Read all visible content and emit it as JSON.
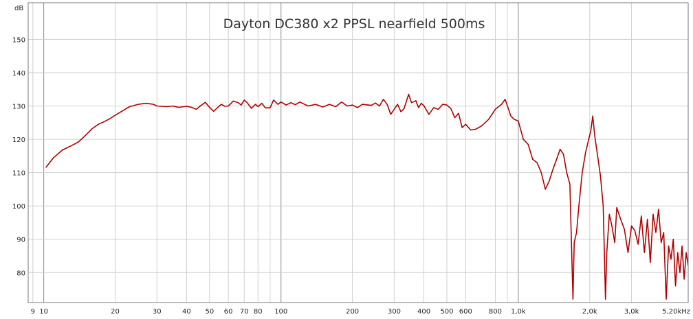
{
  "chart_data": {
    "type": "line",
    "title": "Dayton DC380 x2 PPSL nearfield 500ms",
    "ylabel": "dB",
    "xlabel": "",
    "x_scale": "log",
    "xlim": [
      8.6,
      5200
    ],
    "ylim": [
      71,
      161
    ],
    "grid": true,
    "line_color": "#b00000",
    "x_ticks": [
      {
        "value": 9,
        "label": "9"
      },
      {
        "value": 10,
        "label": "10"
      },
      {
        "value": 20,
        "label": "20"
      },
      {
        "value": 30,
        "label": "30"
      },
      {
        "value": 40,
        "label": "40"
      },
      {
        "value": 50,
        "label": "50"
      },
      {
        "value": 60,
        "label": "60"
      },
      {
        "value": 70,
        "label": "70"
      },
      {
        "value": 80,
        "label": "80"
      },
      {
        "value": 100,
        "label": "100"
      },
      {
        "value": 200,
        "label": "200"
      },
      {
        "value": 300,
        "label": "300"
      },
      {
        "value": 400,
        "label": "400"
      },
      {
        "value": 500,
        "label": "500"
      },
      {
        "value": 600,
        "label": "600"
      },
      {
        "value": 800,
        "label": "800"
      },
      {
        "value": 1000,
        "label": "1,0k"
      },
      {
        "value": 2000,
        "label": "2,0k"
      },
      {
        "value": 3000,
        "label": "3,0k"
      },
      {
        "value": 5200,
        "label": "5,20kHz"
      }
    ],
    "y_ticks": [
      {
        "value": 80,
        "label": "80"
      },
      {
        "value": 90,
        "label": "90"
      },
      {
        "value": 100,
        "label": "100"
      },
      {
        "value": 110,
        "label": "110"
      },
      {
        "value": 120,
        "label": "120"
      },
      {
        "value": 130,
        "label": "130"
      },
      {
        "value": 140,
        "label": "140"
      },
      {
        "value": 150,
        "label": "150"
      }
    ],
    "series": [
      {
        "points": [
          [
            10.2,
            111.5
          ],
          [
            11,
            114.5
          ],
          [
            12,
            116.8
          ],
          [
            13,
            118.0
          ],
          [
            14,
            119.2
          ],
          [
            15,
            121.2
          ],
          [
            16,
            123.2
          ],
          [
            17,
            124.5
          ],
          [
            18,
            125.3
          ],
          [
            19,
            126.2
          ],
          [
            20,
            127.2
          ],
          [
            22,
            129.0
          ],
          [
            23,
            129.8
          ],
          [
            25,
            130.5
          ],
          [
            27,
            130.8
          ],
          [
            29,
            130.5
          ],
          [
            30,
            130.0
          ],
          [
            33,
            129.8
          ],
          [
            35,
            130.0
          ],
          [
            37,
            129.6
          ],
          [
            40,
            129.9
          ],
          [
            42,
            129.6
          ],
          [
            44,
            129.0
          ],
          [
            46,
            130.2
          ],
          [
            48,
            131.1
          ],
          [
            50,
            129.6
          ],
          [
            52,
            128.4
          ],
          [
            54,
            129.5
          ],
          [
            56,
            130.5
          ],
          [
            58,
            129.9
          ],
          [
            60,
            130.0
          ],
          [
            63,
            131.5
          ],
          [
            66,
            131.0
          ],
          [
            68,
            130.3
          ],
          [
            70,
            131.8
          ],
          [
            72,
            131.0
          ],
          [
            75,
            129.3
          ],
          [
            78,
            130.5
          ],
          [
            80,
            129.8
          ],
          [
            83,
            130.8
          ],
          [
            86,
            129.4
          ],
          [
            90,
            129.5
          ],
          [
            93,
            131.8
          ],
          [
            97,
            130.5
          ],
          [
            100,
            131.2
          ],
          [
            105,
            130.3
          ],
          [
            110,
            131.0
          ],
          [
            115,
            130.4
          ],
          [
            120,
            131.2
          ],
          [
            130,
            130.0
          ],
          [
            140,
            130.5
          ],
          [
            150,
            129.7
          ],
          [
            160,
            130.5
          ],
          [
            170,
            129.8
          ],
          [
            180,
            131.2
          ],
          [
            190,
            130.0
          ],
          [
            200,
            130.3
          ],
          [
            210,
            129.5
          ],
          [
            220,
            130.5
          ],
          [
            240,
            130.2
          ],
          [
            250,
            130.9
          ],
          [
            260,
            130.0
          ],
          [
            270,
            132.0
          ],
          [
            280,
            130.5
          ],
          [
            290,
            127.5
          ],
          [
            300,
            129.0
          ],
          [
            310,
            130.5
          ],
          [
            320,
            128.3
          ],
          [
            330,
            129.2
          ],
          [
            345,
            133.5
          ],
          [
            355,
            131.0
          ],
          [
            370,
            131.6
          ],
          [
            380,
            129.5
          ],
          [
            390,
            130.8
          ],
          [
            400,
            130.1
          ],
          [
            420,
            127.5
          ],
          [
            440,
            129.5
          ],
          [
            460,
            129.0
          ],
          [
            480,
            130.5
          ],
          [
            500,
            130.3
          ],
          [
            520,
            129.2
          ],
          [
            540,
            126.5
          ],
          [
            560,
            127.8
          ],
          [
            580,
            123.5
          ],
          [
            600,
            124.5
          ],
          [
            630,
            122.8
          ],
          [
            660,
            123.0
          ],
          [
            700,
            124.0
          ],
          [
            750,
            126.0
          ],
          [
            800,
            129.0
          ],
          [
            850,
            130.5
          ],
          [
            880,
            132.0
          ],
          [
            900,
            130.0
          ],
          [
            930,
            127.0
          ],
          [
            960,
            126.0
          ],
          [
            1000,
            125.5
          ],
          [
            1050,
            120.0
          ],
          [
            1100,
            118.5
          ],
          [
            1150,
            114.0
          ],
          [
            1200,
            113.0
          ],
          [
            1250,
            110.0
          ],
          [
            1300,
            105.0
          ],
          [
            1350,
            107.5
          ],
          [
            1400,
            111.0
          ],
          [
            1450,
            114.0
          ],
          [
            1500,
            117.0
          ],
          [
            1550,
            115.5
          ],
          [
            1600,
            110.0
          ],
          [
            1650,
            106.5
          ],
          [
            1700,
            72.0
          ],
          [
            1720,
            89.0
          ],
          [
            1760,
            92.0
          ],
          [
            1800,
            100.0
          ],
          [
            1860,
            110.0
          ],
          [
            1920,
            116.0
          ],
          [
            1980,
            120.0
          ],
          [
            2020,
            122.5
          ],
          [
            2060,
            127.0
          ],
          [
            2100,
            121.0
          ],
          [
            2150,
            116.0
          ],
          [
            2220,
            109.0
          ],
          [
            2280,
            100.0
          ],
          [
            2330,
            72.0
          ],
          [
            2360,
            86.0
          ],
          [
            2420,
            97.5
          ],
          [
            2480,
            94.0
          ],
          [
            2550,
            89.0
          ],
          [
            2600,
            99.5
          ],
          [
            2700,
            96.0
          ],
          [
            2800,
            93.0
          ],
          [
            2900,
            86.0
          ],
          [
            3000,
            94.0
          ],
          [
            3100,
            92.5
          ],
          [
            3200,
            88.5
          ],
          [
            3300,
            97.0
          ],
          [
            3400,
            86.0
          ],
          [
            3500,
            96.0
          ],
          [
            3600,
            83.0
          ],
          [
            3700,
            97.5
          ],
          [
            3800,
            92.0
          ],
          [
            3900,
            99.0
          ],
          [
            4000,
            89.0
          ],
          [
            4100,
            92.0
          ],
          [
            4200,
            72.0
          ],
          [
            4300,
            88.0
          ],
          [
            4400,
            84.0
          ],
          [
            4500,
            90.0
          ],
          [
            4600,
            76.0
          ],
          [
            4700,
            86.0
          ],
          [
            4800,
            80.0
          ],
          [
            4900,
            88.0
          ],
          [
            5000,
            78.0
          ],
          [
            5100,
            86.0
          ],
          [
            5200,
            82.0
          ]
        ]
      }
    ]
  }
}
